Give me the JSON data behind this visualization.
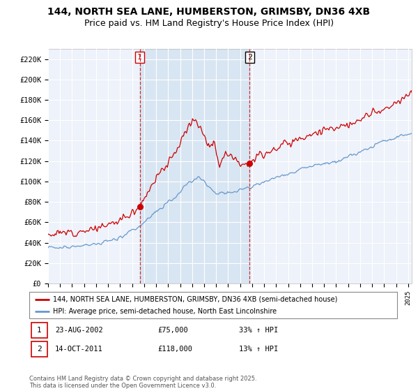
{
  "title": "144, NORTH SEA LANE, HUMBERSTON, GRIMSBY, DN36 4XB",
  "subtitle": "Price paid vs. HM Land Registry's House Price Index (HPI)",
  "x_start": 1995.0,
  "x_end": 2025.3,
  "y_min": 0,
  "y_max": 230000,
  "y_ticks": [
    0,
    20000,
    40000,
    60000,
    80000,
    100000,
    120000,
    140000,
    160000,
    180000,
    200000,
    220000
  ],
  "y_tick_labels": [
    "£0",
    "£20K",
    "£40K",
    "£60K",
    "£80K",
    "£100K",
    "£120K",
    "£140K",
    "£160K",
    "£180K",
    "£200K",
    "£220K"
  ],
  "x_ticks": [
    1995,
    1996,
    1997,
    1998,
    1999,
    2000,
    2001,
    2002,
    2003,
    2004,
    2005,
    2006,
    2007,
    2008,
    2009,
    2010,
    2011,
    2012,
    2013,
    2014,
    2015,
    2016,
    2017,
    2018,
    2019,
    2020,
    2021,
    2022,
    2023,
    2024,
    2025
  ],
  "sale1_x": 2002.644,
  "sale1_y": 75000,
  "sale2_x": 2011.788,
  "sale2_y": 118000,
  "red_line_color": "#cc0000",
  "blue_line_color": "#6699cc",
  "vline_color": "#cc0000",
  "shade_color": "#d0e0f0",
  "plot_bg_color": "#eef2fa",
  "legend_line1": "144, NORTH SEA LANE, HUMBERSTON, GRIMSBY, DN36 4XB (semi-detached house)",
  "legend_line2": "HPI: Average price, semi-detached house, North East Lincolnshire",
  "annotation1_date": "23-AUG-2002",
  "annotation1_price": "£75,000",
  "annotation1_hpi": "33% ↑ HPI",
  "annotation2_date": "14-OCT-2011",
  "annotation2_price": "£118,000",
  "annotation2_hpi": "13% ↑ HPI",
  "footer": "Contains HM Land Registry data © Crown copyright and database right 2025.\nThis data is licensed under the Open Government Licence v3.0.",
  "title_fontsize": 10,
  "subtitle_fontsize": 9
}
